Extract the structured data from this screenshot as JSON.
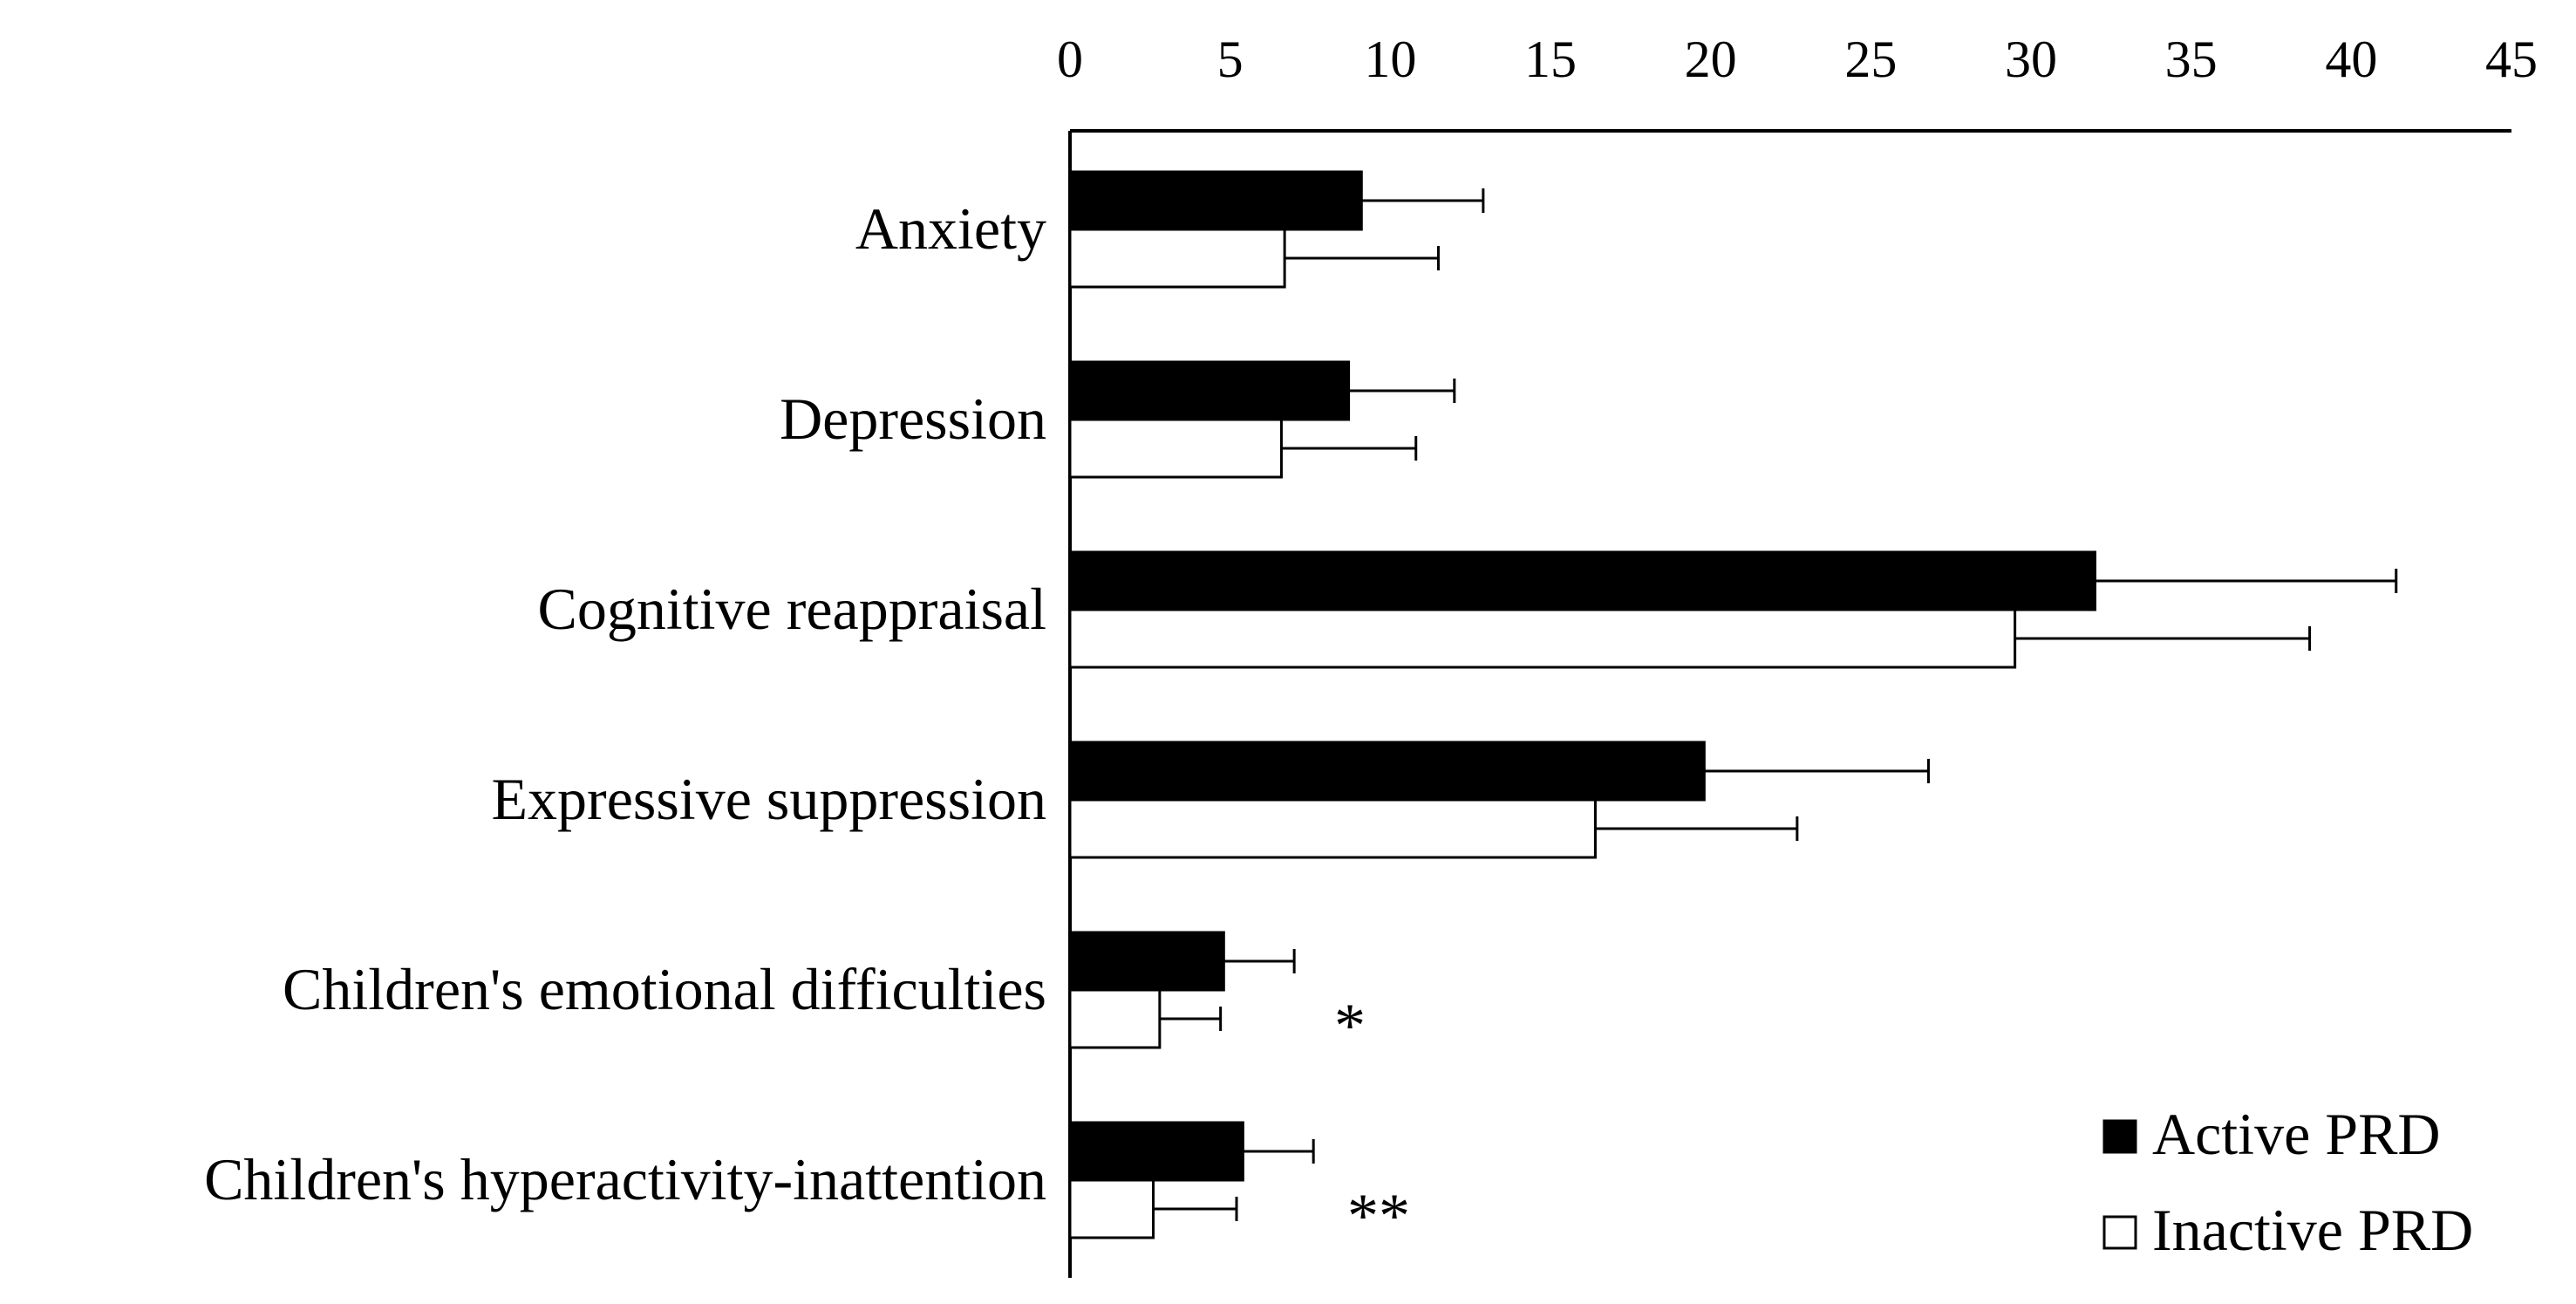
{
  "chart_data": {
    "type": "bar",
    "orientation": "horizontal",
    "title": "",
    "xlabel": "",
    "ylabel": "",
    "xlim": [
      0,
      45
    ],
    "x_ticks": [
      "0",
      "5",
      "10",
      "15",
      "20",
      "25",
      "30",
      "35",
      "40",
      "45"
    ],
    "x_axis_position": "top",
    "grid": false,
    "legend_position": "bottom-right",
    "categories": [
      "Anxiety",
      "Depression",
      "Cognitive reappraisal",
      "Expressive suppression",
      "Children's emotional difficulties",
      "Children's hyperactivity-inattention"
    ],
    "series": [
      {
        "name": "Active PRD",
        "color": "#000000",
        "values": [
          9.1,
          8.7,
          32.0,
          19.8,
          4.8,
          5.4
        ],
        "errors": [
          3.8,
          3.3,
          9.4,
          7.0,
          2.2,
          2.2
        ]
      },
      {
        "name": "Inactive PRD",
        "color": "#ffffff",
        "values": [
          6.7,
          6.6,
          29.5,
          16.4,
          2.8,
          2.6
        ],
        "errors": [
          4.8,
          4.2,
          9.2,
          6.3,
          1.9,
          2.6
        ]
      }
    ],
    "annotations": [
      "",
      "",
      "",
      "",
      "*",
      "**"
    ]
  }
}
